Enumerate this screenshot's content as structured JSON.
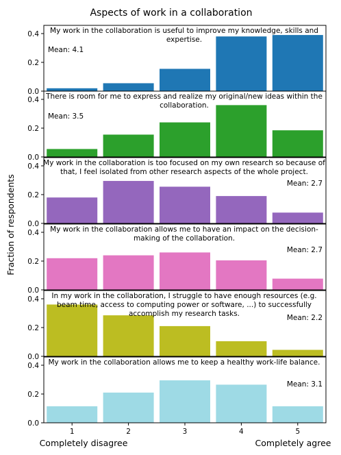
{
  "chart_data": {
    "type": "bar",
    "title": "Aspects of work in a collaboration",
    "ylabel": "Fraction of respondents",
    "xlabel": "",
    "categories": [
      "1",
      "2",
      "3",
      "4",
      "5"
    ],
    "x_end_labels": {
      "left": "Completely disagree",
      "right": "Completely agree"
    },
    "ylim": [
      0,
      0.45
    ],
    "yticks": [
      "0.0",
      "0.2",
      "0.4"
    ],
    "panels": [
      {
        "question": "My work in the collaboration is useful to improve my knowledge, skills and expertise.",
        "question_lines": [
          "My work in the collaboration is useful to improve my knowledge, skills and",
          "expertise."
        ],
        "mean_label": "Mean: 4.1",
        "color": "#1f77b4",
        "values": [
          0.02,
          0.055,
          0.155,
          0.38,
          0.39
        ]
      },
      {
        "question": "There is room for me to express and realize my original/new ideas within the collaboration.",
        "question_lines": [
          "There is room for me to express and realize my original/new ideas within the",
          "collaboration."
        ],
        "mean_label": "Mean: 3.5",
        "color": "#2ca02c",
        "values": [
          0.055,
          0.155,
          0.24,
          0.36,
          0.185
        ]
      },
      {
        "question": "My work in the collaboration is too focused on my own research so because of that, I feel isolated from other research aspects of the whole project.",
        "question_lines": [
          "My work in the collaboration is too focused on my own research so because of",
          "that, I feel isolated from other research aspects of the whole project."
        ],
        "mean_label": "Mean: 2.7",
        "color": "#9467bd",
        "values": [
          0.18,
          0.295,
          0.255,
          0.19,
          0.075
        ]
      },
      {
        "question": "My work in the collaboration allows me to have an impact on the decision-making of the collaboration.",
        "question_lines": [
          "My work in the collaboration allows me to have an impact on the decision-",
          "making of the collaboration."
        ],
        "mean_label": "Mean: 2.7",
        "color": "#e377c2",
        "values": [
          0.22,
          0.24,
          0.26,
          0.205,
          0.078
        ]
      },
      {
        "question": "In my work in the collaboration, I struggle to have enough resources (e.g. beam time, access to computing power or software, ...) to successfully accomplish my research tasks.",
        "question_lines": [
          "In my work in the collaboration, I struggle to have enough resources (e.g.",
          "beam time, access to computing power or software, ...) to successfully",
          "accomplish my research tasks."
        ],
        "mean_label": "Mean: 2.2",
        "color": "#bcbd22",
        "values": [
          0.36,
          0.285,
          0.21,
          0.105,
          0.045
        ]
      },
      {
        "question": "My work in the collaboration allows me to keep a healthy work-life balance.",
        "question_lines": [
          "My work in the collaboration allows me to keep a healthy work-life balance."
        ],
        "mean_label": "Mean: 3.1",
        "color": "#9edae5",
        "values": [
          0.115,
          0.21,
          0.295,
          0.265,
          0.115
        ]
      }
    ]
  }
}
